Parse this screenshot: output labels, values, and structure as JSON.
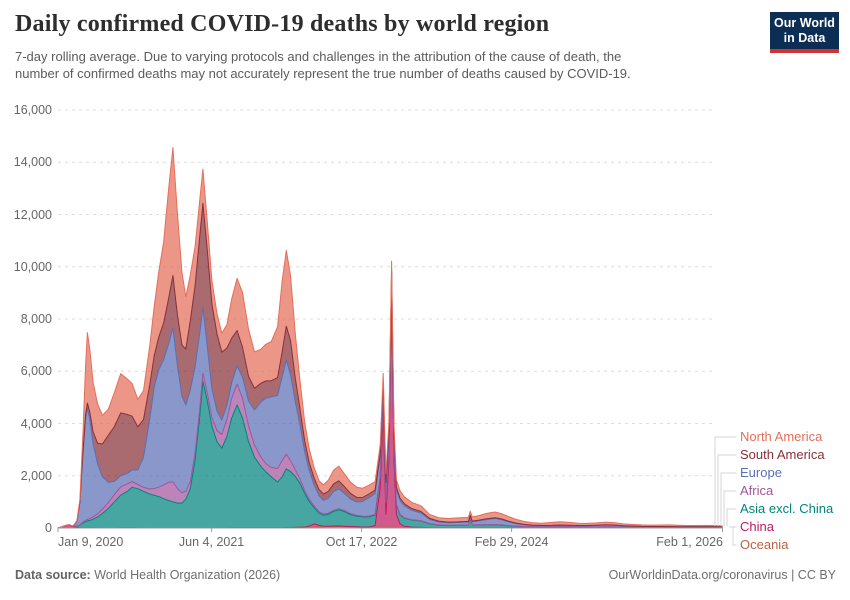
{
  "header": {
    "subtitle_line1": "7-day rolling average. Due to varying protocols and challenges in the attribution of the cause of death, the",
    "subtitle_line2": "number of confirmed deaths may not accurately represent the true number of deaths caused by COVID-19.",
    "logo": {
      "line1": "Our World",
      "line2": "in Data",
      "bg_color": "#0d2e54",
      "stripe_color": "#cb3633"
    }
  },
  "footer": {
    "source_label": "Data source:",
    "source_name": " World Health Organization (2026)",
    "url_text": "OurWorldinData.org/coronavirus",
    "license_text": " | CC BY"
  },
  "chart_data": {
    "type": "area",
    "stacked": true,
    "title": "Daily confirmed COVID-19 deaths by world region",
    "xlabel": "",
    "ylabel": "",
    "grid": true,
    "legend_position": "right",
    "ylim": [
      0,
      16000
    ],
    "x_start": "2020-01-09",
    "x_end": "2026-02-01",
    "y_ticks": [
      {
        "v": 0,
        "label": "0"
      },
      {
        "v": 2000,
        "label": "2,000"
      },
      {
        "v": 4000,
        "label": "4,000"
      },
      {
        "v": 6000,
        "label": "6,000"
      },
      {
        "v": 8000,
        "label": "8,000"
      },
      {
        "v": 10000,
        "label": "10,000"
      },
      {
        "v": 12000,
        "label": "12,000"
      },
      {
        "v": 14000,
        "label": "14,000"
      },
      {
        "v": 16000,
        "label": "16,000"
      }
    ],
    "x_ticks": [
      {
        "date": "2020-01-09",
        "label": "Jan 9, 2020",
        "align": "left"
      },
      {
        "date": "2021-06-04",
        "label": "Jun 4, 2021",
        "align": "center"
      },
      {
        "date": "2022-10-17",
        "label": "Oct 17, 2022",
        "align": "center"
      },
      {
        "date": "2024-02-29",
        "label": "Feb 29, 2024",
        "align": "center"
      },
      {
        "date": "2026-02-01",
        "label": "Feb 1, 2026",
        "align": "right"
      }
    ],
    "dates": [
      "2020-01-09",
      "2020-01-22",
      "2020-02-05",
      "2020-02-15",
      "2020-02-28",
      "2020-03-12",
      "2020-03-22",
      "2020-04-01",
      "2020-04-10",
      "2020-04-16",
      "2020-04-24",
      "2020-05-05",
      "2020-05-20",
      "2020-06-05",
      "2020-06-25",
      "2020-07-15",
      "2020-08-05",
      "2020-08-28",
      "2020-09-12",
      "2020-10-01",
      "2020-10-20",
      "2020-11-10",
      "2020-11-25",
      "2020-12-10",
      "2020-12-26",
      "2021-01-12",
      "2021-01-26",
      "2021-02-10",
      "2021-02-25",
      "2021-03-10",
      "2021-03-25",
      "2021-04-10",
      "2021-04-25",
      "2021-05-06",
      "2021-05-20",
      "2021-06-05",
      "2021-06-22",
      "2021-07-08",
      "2021-07-25",
      "2021-08-10",
      "2021-08-28",
      "2021-09-15",
      "2021-10-05",
      "2021-10-25",
      "2021-11-15",
      "2021-12-01",
      "2021-12-20",
      "2022-01-10",
      "2022-01-25",
      "2022-02-08",
      "2022-02-22",
      "2022-03-10",
      "2022-03-25",
      "2022-04-10",
      "2022-04-25",
      "2022-05-12",
      "2022-05-28",
      "2022-06-12",
      "2022-06-28",
      "2022-07-16",
      "2022-08-02",
      "2022-08-20",
      "2022-09-10",
      "2022-10-01",
      "2022-10-20",
      "2022-11-10",
      "2022-12-01",
      "2022-12-18",
      "2022-12-28",
      "2023-01-06",
      "2023-01-16",
      "2023-01-25",
      "2023-02-02",
      "2023-02-10",
      "2023-02-22",
      "2023-03-08",
      "2023-04-01",
      "2023-05-03",
      "2023-06-01",
      "2023-07-01",
      "2023-08-01",
      "2023-09-01",
      "2023-10-08",
      "2023-10-14",
      "2023-10-21",
      "2023-11-12",
      "2023-12-08",
      "2024-01-05",
      "2024-01-26",
      "2024-02-16",
      "2024-03-12",
      "2024-04-08",
      "2024-05-08",
      "2024-06-08",
      "2024-07-12",
      "2024-08-08",
      "2024-09-08",
      "2024-10-08",
      "2024-11-08",
      "2024-12-08",
      "2025-01-08",
      "2025-02-08",
      "2025-03-08",
      "2025-04-08",
      "2025-05-08",
      "2025-06-08",
      "2025-07-08",
      "2025-08-08",
      "2025-09-08",
      "2025-10-08",
      "2025-11-08",
      "2025-12-08",
      "2026-01-08",
      "2026-02-01"
    ],
    "series": [
      {
        "name": "North America",
        "color": "#e56e5a",
        "values": [
          0,
          0,
          0,
          0,
          1,
          18,
          120,
          700,
          1900,
          2700,
          2400,
          1900,
          1500,
          1100,
          1000,
          1300,
          1500,
          1350,
          1250,
          1050,
          1100,
          1500,
          1900,
          2500,
          3100,
          4200,
          4900,
          3900,
          2800,
          2000,
          1750,
          1500,
          1400,
          1300,
          1100,
          900,
          780,
          720,
          900,
          1500,
          2000,
          2100,
          1800,
          1400,
          1300,
          1400,
          1500,
          1950,
          2700,
          2900,
          2500,
          1700,
          1100,
          720,
          520,
          400,
          340,
          360,
          430,
          530,
          560,
          490,
          430,
          385,
          355,
          335,
          325,
          330,
          335,
          330,
          325,
          318,
          305,
          292,
          280,
          262,
          235,
          215,
          150,
          130,
          135,
          150,
          150,
          155,
          158,
          175,
          200,
          220,
          205,
          180,
          145,
          115,
          92,
          85,
          110,
          130,
          110,
          88,
          80,
          88,
          100,
          88,
          72,
          62,
          56,
          54,
          58,
          62,
          52,
          48,
          45,
          47,
          45,
          42
        ]
      },
      {
        "name": "South America",
        "color": "#883039",
        "values": [
          0,
          0,
          0,
          0,
          0,
          2,
          18,
          70,
          150,
          200,
          280,
          450,
          800,
          1250,
          1800,
          2100,
          2400,
          2250,
          2050,
          1650,
          1450,
          1300,
          1200,
          1250,
          1400,
          1750,
          2000,
          1950,
          1950,
          2150,
          2650,
          3100,
          3700,
          4000,
          3700,
          3250,
          2950,
          2600,
          2200,
          1700,
          1350,
          1150,
          950,
          820,
          720,
          660,
          620,
          680,
          950,
          1300,
          1300,
          900,
          620,
          420,
          320,
          260,
          230,
          240,
          260,
          290,
          310,
          260,
          210,
          175,
          155,
          145,
          135,
          122,
          116,
          112,
          110,
          108,
          102,
          96,
          90,
          82,
          70,
          60,
          40,
          32,
          28,
          26,
          26,
          26,
          27,
          28,
          30,
          32,
          30,
          26,
          22,
          18,
          15,
          13,
          13,
          14,
          13,
          12,
          11,
          11,
          11,
          10,
          9,
          8,
          7,
          6,
          6,
          6,
          5,
          5,
          5,
          5,
          5,
          4
        ]
      },
      {
        "name": "Europe",
        "color": "#5b6fb5",
        "values": [
          0,
          0,
          0,
          0,
          4,
          180,
          850,
          2600,
          3900,
          4250,
          3800,
          2800,
          1900,
          1250,
          780,
          500,
          430,
          400,
          450,
          560,
          1150,
          2700,
          3900,
          4500,
          4800,
          5300,
          5900,
          4700,
          3700,
          3300,
          3500,
          3300,
          2900,
          2500,
          1800,
          1100,
          750,
          560,
          520,
          600,
          700,
          800,
          950,
          1350,
          2100,
          2500,
          2700,
          2800,
          3200,
          3600,
          3300,
          2600,
          2100,
          1500,
          1100,
          800,
          620,
          520,
          570,
          720,
          760,
          660,
          560,
          510,
          560,
          700,
          800,
          750,
          700,
          665,
          650,
          640,
          600,
          560,
          530,
          460,
          360,
          290,
          160,
          110,
          95,
          100,
          110,
          115,
          120,
          150,
          200,
          230,
          200,
          150,
          100,
          68,
          48,
          40,
          40,
          44,
          40,
          38,
          42,
          55,
          68,
          58,
          42,
          32,
          27,
          24,
          23,
          22,
          21,
          21,
          23,
          25,
          23,
          21
        ]
      },
      {
        "name": "Africa",
        "color": "#a2559c",
        "values": [
          0,
          0,
          0,
          0,
          0,
          4,
          12,
          30,
          50,
          60,
          70,
          90,
          120,
          160,
          220,
          280,
          320,
          280,
          220,
          160,
          150,
          190,
          260,
          360,
          520,
          700,
          760,
          560,
          400,
          300,
          280,
          280,
          300,
          330,
          300,
          330,
          420,
          520,
          660,
          760,
          800,
          760,
          600,
          460,
          360,
          310,
          360,
          520,
          620,
          560,
          410,
          260,
          160,
          110,
          85,
          65,
          52,
          46,
          42,
          42,
          46,
          42,
          36,
          30,
          28,
          30,
          30,
          28,
          27,
          27,
          26,
          25,
          24,
          23,
          21,
          19,
          16,
          14,
          11,
          9,
          8,
          8,
          8,
          8,
          8,
          8,
          8,
          8,
          8,
          7,
          6,
          5,
          4,
          4,
          4,
          4,
          4,
          4,
          4,
          4,
          4,
          4,
          3,
          3,
          3,
          3,
          3,
          3,
          2,
          2,
          2,
          2,
          2,
          2
        ]
      },
      {
        "name": "Asia excl. China",
        "color": "#00847e",
        "values": [
          0,
          2,
          3,
          4,
          10,
          45,
          90,
          180,
          230,
          260,
          280,
          330,
          420,
          550,
          750,
          1000,
          1250,
          1400,
          1550,
          1500,
          1400,
          1300,
          1250,
          1200,
          1120,
          1050,
          1000,
          950,
          950,
          1100,
          1500,
          2600,
          4200,
          5600,
          4900,
          3900,
          3300,
          3050,
          3500,
          4200,
          4700,
          4200,
          3300,
          2700,
          2350,
          2150,
          1950,
          1750,
          1950,
          2250,
          2150,
          1950,
          1700,
          1300,
          950,
          620,
          470,
          420,
          460,
          560,
          610,
          560,
          460,
          410,
          385,
          385,
          400,
          420,
          418,
          410,
          405,
          400,
          380,
          360,
          345,
          310,
          270,
          245,
          140,
          100,
          85,
          90,
          100,
          330,
          100,
          105,
          110,
          115,
          100,
          80,
          60,
          48,
          40,
          38,
          42,
          45,
          42,
          38,
          35,
          34,
          36,
          33,
          28,
          25,
          23,
          22,
          22,
          21,
          19,
          18,
          17,
          16,
          16,
          15
        ]
      },
      {
        "name": "China",
        "color": "#bf1b61",
        "values": [
          5,
          40,
          95,
          120,
          60,
          25,
          15,
          10,
          8,
          5,
          5,
          4,
          3,
          3,
          2,
          2,
          2,
          2,
          2,
          2,
          2,
          2,
          2,
          2,
          2,
          2,
          2,
          2,
          2,
          2,
          2,
          2,
          2,
          2,
          2,
          2,
          2,
          2,
          2,
          2,
          2,
          2,
          2,
          2,
          2,
          2,
          2,
          2,
          2,
          2,
          2,
          2,
          2,
          2,
          40,
          120,
          60,
          25,
          20,
          26,
          26,
          20,
          15,
          10,
          8,
          10,
          60,
          1500,
          4300,
          500,
          2500,
          8700,
          2500,
          500,
          140,
          45,
          18,
          9,
          6,
          4,
          4,
          4,
          4,
          4,
          4,
          4,
          4,
          4,
          4,
          3,
          3,
          2,
          2,
          2,
          2,
          2,
          2,
          2,
          2,
          2,
          2,
          2,
          1,
          1,
          1,
          1,
          1,
          1,
          1,
          1,
          1,
          1,
          1,
          1
        ]
      },
      {
        "name": "Oceania",
        "color": "#bd6340",
        "values": [
          0,
          0,
          0,
          0,
          0,
          0,
          1,
          3,
          5,
          5,
          4,
          3,
          2,
          1,
          1,
          2,
          5,
          8,
          6,
          3,
          2,
          1,
          1,
          1,
          1,
          1,
          1,
          1,
          1,
          1,
          1,
          1,
          1,
          1,
          1,
          1,
          2,
          2,
          3,
          4,
          6,
          8,
          10,
          10,
          8,
          6,
          5,
          5,
          8,
          12,
          15,
          20,
          25,
          30,
          32,
          36,
          40,
          46,
          48,
          52,
          56,
          50,
          42,
          36,
          32,
          30,
          30,
          28,
          27,
          26,
          26,
          25,
          24,
          23,
          22,
          20,
          17,
          15,
          10,
          8,
          7,
          7,
          6,
          6,
          6,
          6,
          5,
          5,
          5,
          4,
          4,
          4,
          3,
          3,
          4,
          4,
          4,
          3,
          3,
          3,
          3,
          3,
          2,
          2,
          2,
          2,
          2,
          2,
          2,
          2,
          2,
          2,
          2,
          2
        ]
      }
    ]
  }
}
